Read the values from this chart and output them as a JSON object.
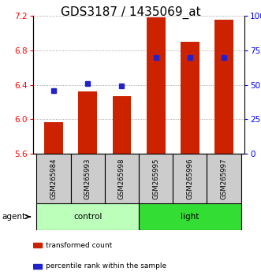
{
  "title": "GDS3187 / 1435069_at",
  "samples": [
    "GSM265984",
    "GSM265993",
    "GSM265998",
    "GSM265995",
    "GSM265996",
    "GSM265997"
  ],
  "bar_values": [
    5.97,
    6.32,
    6.27,
    7.18,
    6.9,
    7.15
  ],
  "bar_baseline": 5.6,
  "percentile_values": [
    46,
    51,
    49,
    70,
    70,
    70
  ],
  "ylim_left": [
    5.6,
    7.2
  ],
  "ylim_right": [
    0,
    100
  ],
  "yticks_left": [
    5.6,
    6.0,
    6.4,
    6.8,
    7.2
  ],
  "yticks_right": [
    0,
    25,
    50,
    75,
    100
  ],
  "bar_color": "#cc2200",
  "dot_color": "#2222cc",
  "groups": [
    {
      "label": "control",
      "indices": [
        0,
        1,
        2
      ],
      "color": "#bbffbb"
    },
    {
      "label": "light",
      "indices": [
        3,
        4,
        5
      ],
      "color": "#33dd33"
    }
  ],
  "sample_box_color": "#cccccc",
  "agent_label": "agent",
  "legend_items": [
    {
      "label": "transformed count",
      "color": "#cc2200"
    },
    {
      "label": "percentile rank within the sample",
      "color": "#2222cc"
    }
  ],
  "grid_color": "#888888",
  "title_fontsize": 11,
  "tick_fontsize": 7.5
}
